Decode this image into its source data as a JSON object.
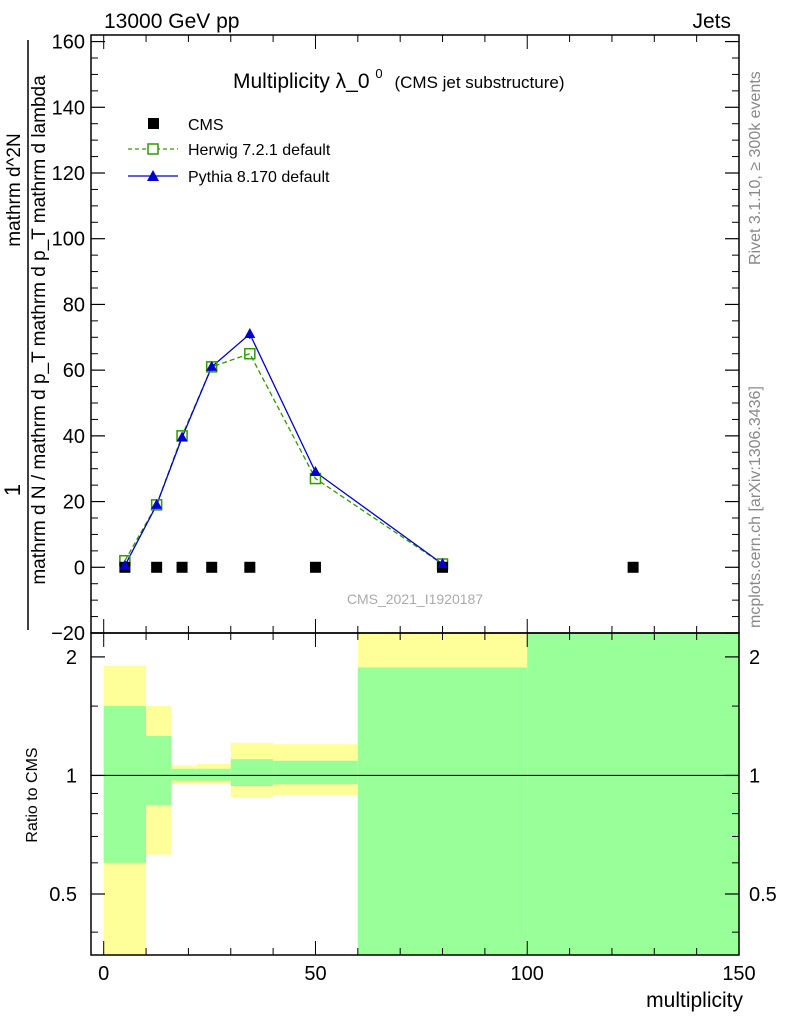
{
  "header": {
    "left": "13000 GeV pp",
    "right": "Jets"
  },
  "side_labels": {
    "rivet": "Rivet 3.1.10, ≥ 300k events",
    "mcplots": "mcplots.cern.ch [arXiv:1306.3436]"
  },
  "colors": {
    "cms": "#000000",
    "herwig": "#339900",
    "pythia": "#0000cc",
    "band_inner": "#99ff99",
    "band_outer": "#ffff99"
  },
  "chart_data": [
    {
      "type": "line",
      "title_main": "Multiplicity λ_0",
      "title_sup": "0",
      "title_sub": "(CMS jet substructure)",
      "ylabel_top": "1",
      "ylabel_bottom": "mathrm d N / mathrm d p_T mathrm d p_T mathrm d lambda",
      "ylabel_inner_top": "mathrm d^2N",
      "ylabel_inner_bottom": "mathrm d p_T mathrm d lambda",
      "watermark": "CMS_2021_I1920187",
      "xlim": [
        -3,
        150
      ],
      "ylim": [
        -20,
        162
      ],
      "y_ticks": [
        -20,
        0,
        20,
        40,
        60,
        80,
        100,
        120,
        140,
        160
      ],
      "y_tick_labels": [
        "−20",
        "0",
        "20",
        "40",
        "60",
        "80",
        "100",
        "120",
        "140",
        "160"
      ],
      "legend": [
        {
          "key": "cms",
          "label": "CMS"
        },
        {
          "key": "herwig",
          "label": "Herwig 7.2.1 default"
        },
        {
          "key": "pythia",
          "label": "Pythia 8.170 default"
        }
      ],
      "series": [
        {
          "name": "CMS",
          "key": "cms",
          "x": [
            5,
            12.5,
            18.5,
            25.5,
            34.5,
            50,
            80,
            125
          ],
          "y": [
            0,
            0,
            0,
            0,
            0,
            0,
            0,
            0
          ]
        },
        {
          "name": "Herwig 7.2.1 default",
          "key": "herwig",
          "x": [
            5,
            12.5,
            18.5,
            25.5,
            34.5,
            50,
            80
          ],
          "y": [
            2,
            19,
            40,
            61,
            65,
            27,
            1
          ]
        },
        {
          "name": "Pythia 8.170 default",
          "key": "pythia",
          "x": [
            5,
            12.5,
            18.5,
            25.5,
            34.5,
            50,
            80
          ],
          "y": [
            0.5,
            19,
            39.5,
            61,
            71,
            29,
            1
          ],
          "errors": [
            0,
            0,
            0,
            0.5,
            1.5,
            0.5,
            0
          ]
        }
      ]
    },
    {
      "type": "area",
      "ylabel": "Ratio to CMS",
      "xlabel": "multiplicity",
      "xlim": [
        -3,
        150
      ],
      "ylim": [
        0.35,
        2.3
      ],
      "y_scale": "log",
      "x_ticks": [
        0,
        50,
        100,
        150
      ],
      "x_tick_labels": [
        "0",
        "50",
        "100",
        "150"
      ],
      "y_ticks": [
        0.5,
        1,
        2
      ],
      "y_tick_labels": [
        "0.5",
        "1",
        "2"
      ],
      "reference_line": 1,
      "bands": [
        {
          "x0": 0,
          "x1": 10,
          "inner": [
            0.6,
            1.5
          ],
          "outer": [
            0.35,
            1.9
          ]
        },
        {
          "x0": 10,
          "x1": 16,
          "inner": [
            0.84,
            1.26
          ],
          "outer": [
            0.63,
            1.5
          ]
        },
        {
          "x0": 16,
          "x1": 22,
          "inner": [
            0.97,
            1.04
          ],
          "outer": [
            0.95,
            1.06
          ]
        },
        {
          "x0": 22,
          "x1": 30,
          "inner": [
            0.97,
            1.04
          ],
          "outer": [
            0.95,
            1.07
          ]
        },
        {
          "x0": 30,
          "x1": 40,
          "inner": [
            0.94,
            1.1
          ],
          "outer": [
            0.88,
            1.21
          ]
        },
        {
          "x0": 40,
          "x1": 60,
          "inner": [
            0.95,
            1.09
          ],
          "outer": [
            0.89,
            1.2
          ]
        },
        {
          "x0": 60,
          "x1": 100,
          "inner": [
            0.35,
            1.88
          ],
          "outer": [
            0.35,
            2.3
          ]
        },
        {
          "x0": 100,
          "x1": 150,
          "inner": [
            0.35,
            2.3
          ],
          "outer": [
            0.35,
            2.3
          ]
        }
      ]
    }
  ]
}
